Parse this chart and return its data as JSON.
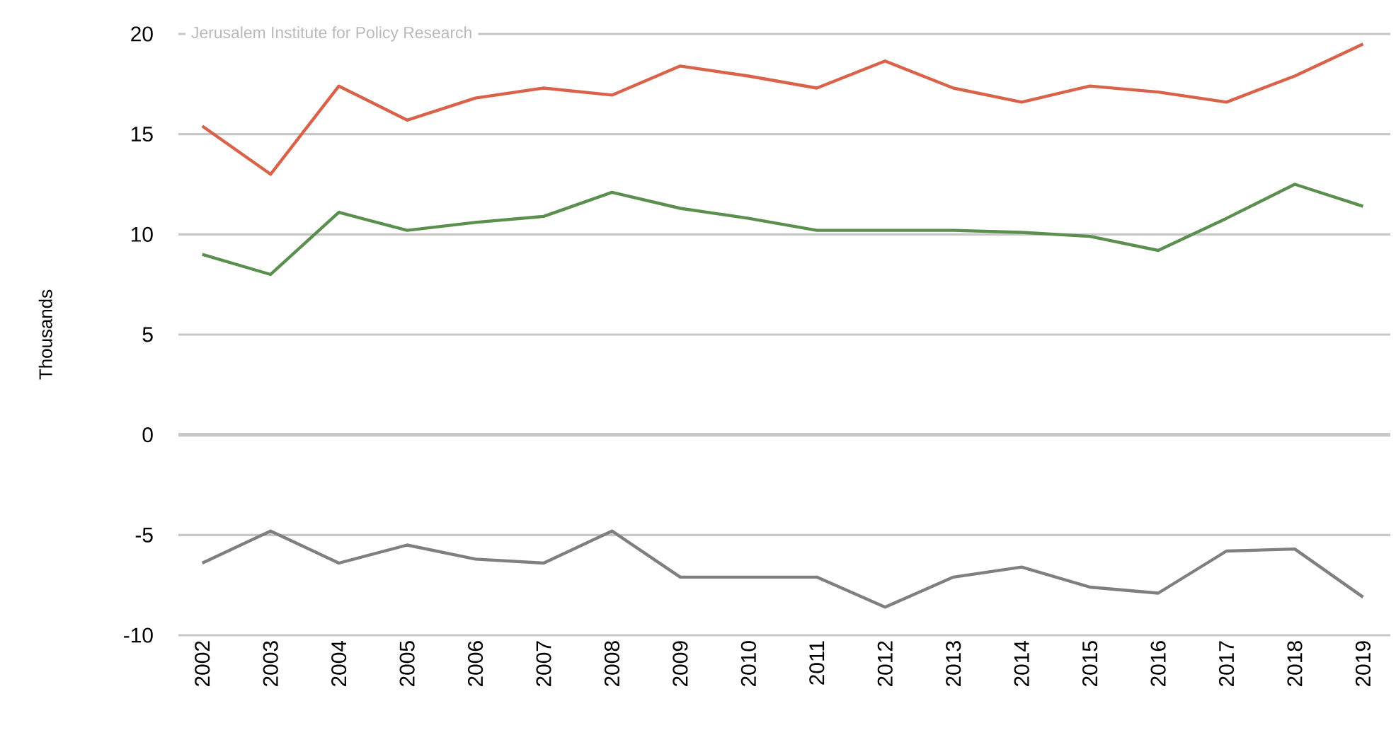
{
  "chart_data": {
    "type": "line",
    "ylabel": "Thousands",
    "annotations": [
      "Jerusalem Institute for Policy Research"
    ],
    "categories": [
      "2002",
      "2003",
      "2004",
      "2005",
      "2006",
      "2007",
      "2008",
      "2009",
      "2010",
      "2011",
      "2012",
      "2013",
      "2014",
      "2015",
      "2016",
      "2017",
      "2018",
      "2019"
    ],
    "series": [
      {
        "color": "#d9634a",
        "values": [
          15.4,
          13.0,
          17.4,
          15.7,
          16.8,
          17.3,
          16.95,
          18.4,
          17.9,
          17.3,
          18.65,
          17.3,
          16.6,
          17.4,
          17.1,
          16.6,
          17.9,
          19.5
        ]
      },
      {
        "color": "#5a8f4f",
        "values": [
          9.0,
          8.0,
          11.1,
          10.2,
          10.6,
          10.9,
          12.1,
          11.3,
          10.8,
          10.2,
          10.2,
          10.2,
          10.1,
          9.9,
          9.2,
          10.8,
          12.5,
          11.4
        ]
      },
      {
        "color": "#7f7f7f",
        "values": [
          -6.4,
          -4.8,
          -6.4,
          -5.5,
          -6.2,
          -6.4,
          -4.8,
          -7.1,
          -7.1,
          -7.1,
          -8.6,
          -7.1,
          -6.6,
          -7.6,
          -7.9,
          -5.8,
          -5.7,
          -8.1
        ]
      }
    ],
    "ylim": [
      -10,
      20
    ],
    "yticks": [
      -10,
      -5,
      0,
      5,
      10,
      15,
      20
    ],
    "grid": "y",
    "ref_lines": [
      {
        "axis": "y",
        "value": 0,
        "color": "#c8c8c8"
      }
    ]
  }
}
